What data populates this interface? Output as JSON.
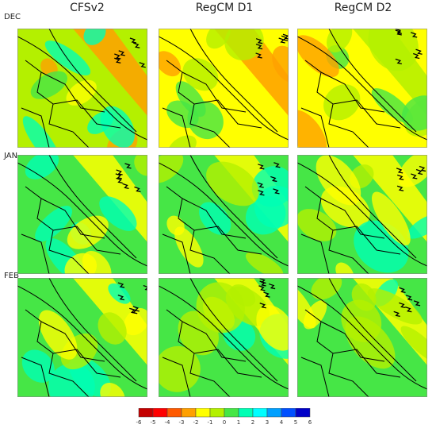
{
  "columns": [
    "CFSv2",
    "RegCM D1",
    "RegCM D2"
  ],
  "rows": [
    "DEC",
    "JAN",
    "FEB"
  ],
  "colorbar": {
    "ticks": [
      "-6",
      "-5",
      "-4",
      "-3",
      "-2",
      "-1",
      "0",
      "1",
      "2",
      "3",
      "4",
      "5",
      "6"
    ],
    "colors": [
      "#c40000",
      "#ff0000",
      "#ff5a00",
      "#ffa000",
      "#ffff00",
      "#b4f000",
      "#46e646",
      "#00ffb4",
      "#00ffff",
      "#00a0ff",
      "#0050ff",
      "#0000c8"
    ]
  },
  "panels": [
    {
      "row": "DEC",
      "column": "CFSv2",
      "palette": [
        "#b4f000",
        "#ffff00",
        "#ffa000",
        "#46e646",
        "#00ffb4"
      ]
    },
    {
      "row": "DEC",
      "column": "RegCM D1",
      "palette": [
        "#ffff00",
        "#b4f000",
        "#ffa000",
        "#46e646"
      ]
    },
    {
      "row": "DEC",
      "column": "RegCM D2",
      "palette": [
        "#ffff00",
        "#ffa000",
        "#b4f000",
        "#46e646"
      ]
    },
    {
      "row": "JAN",
      "column": "CFSv2",
      "palette": [
        "#46e646",
        "#b4f000",
        "#ffff00",
        "#00ffb4"
      ]
    },
    {
      "row": "JAN",
      "column": "RegCM D1",
      "palette": [
        "#46e646",
        "#b4f000",
        "#ffff00",
        "#00ffb4"
      ]
    },
    {
      "row": "JAN",
      "column": "RegCM D2",
      "palette": [
        "#46e646",
        "#00ffb4",
        "#ffff00",
        "#b4f000"
      ]
    },
    {
      "row": "FEB",
      "column": "CFSv2",
      "palette": [
        "#46e646",
        "#b4f000",
        "#ffff00",
        "#00ffb4"
      ]
    },
    {
      "row": "FEB",
      "column": "RegCM D1",
      "palette": [
        "#46e646",
        "#b4f000",
        "#ffff00",
        "#00ffb4"
      ]
    },
    {
      "row": "FEB",
      "column": "RegCM D2",
      "palette": [
        "#46e646",
        "#b4f000",
        "#ffff00",
        "#00ffb4"
      ]
    }
  ]
}
